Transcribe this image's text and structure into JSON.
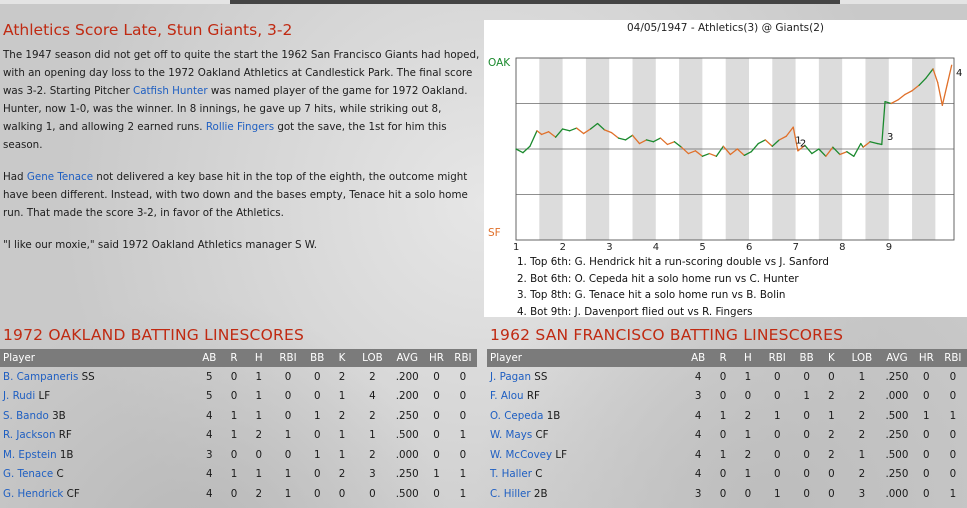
{
  "article": {
    "headline": "Athletics Score Late, Stun Giants, 3-2",
    "p1": [
      {
        "t": "The 1947 season did not get off to quite the start the 1962 San Francisco Giants had hoped, with an opening day loss to the 1972 Oakland Athletics at Candlestick Park. The final score was 3-2. Starting Pitcher "
      },
      {
        "t": "Catfish Hunter",
        "link": true
      },
      {
        "t": " was named player of the game for 1972 Oakland. Hunter, now 1-0, was the winner. In 8 innings, he gave up 7 hits, while striking out 8, walking 1, and allowing 2 earned runs. "
      },
      {
        "t": "Rollie Fingers",
        "link": true
      },
      {
        "t": " got the save, the 1st for him this season."
      }
    ],
    "p2": [
      {
        "t": "Had "
      },
      {
        "t": "Gene Tenace",
        "link": true
      },
      {
        "t": " not delivered a key base hit in the top of the eighth, the outcome might have been different. Instead, with two down and the bases empty, Tenace hit a solo home run. That made the score 3-2, in favor of the Athletics."
      }
    ],
    "p3": [
      {
        "t": "\"I like our moxie,\" said 1972 Oakland Athletics manager S W."
      }
    ]
  },
  "chart_data": {
    "type": "line",
    "title": "04/05/1947 - Athletics(3) @ Giants(2)",
    "top_label": "OAK",
    "bottom_label": "SF",
    "x_ticks": [
      "1",
      "2",
      "3",
      "4",
      "5",
      "6",
      "7",
      "8",
      "9"
    ],
    "xlim": [
      0,
      9.4
    ],
    "ylim": [
      -1,
      1
    ],
    "grid": true,
    "colors": {
      "oak": "#1b8a2e",
      "sf": "#e0702a",
      "band": "#dcdcdc"
    },
    "points": [
      [
        0.0,
        0.0,
        "g"
      ],
      [
        0.15,
        -0.04,
        "g"
      ],
      [
        0.3,
        0.03,
        "g"
      ],
      [
        0.45,
        0.2,
        "g"
      ],
      [
        0.55,
        0.16,
        "o"
      ],
      [
        0.7,
        0.19,
        "o"
      ],
      [
        0.85,
        0.13,
        "o"
      ],
      [
        1.0,
        0.22,
        "g"
      ],
      [
        1.15,
        0.2,
        "g"
      ],
      [
        1.3,
        0.23,
        "g"
      ],
      [
        1.45,
        0.17,
        "o"
      ],
      [
        1.6,
        0.22,
        "o"
      ],
      [
        1.75,
        0.28,
        "g"
      ],
      [
        1.9,
        0.21,
        "g"
      ],
      [
        2.05,
        0.18,
        "o"
      ],
      [
        2.2,
        0.12,
        "o"
      ],
      [
        2.35,
        0.1,
        "g"
      ],
      [
        2.5,
        0.15,
        "g"
      ],
      [
        2.65,
        0.06,
        "o"
      ],
      [
        2.8,
        0.1,
        "o"
      ],
      [
        2.95,
        0.08,
        "g"
      ],
      [
        3.1,
        0.12,
        "g"
      ],
      [
        3.25,
        0.05,
        "o"
      ],
      [
        3.4,
        0.08,
        "o"
      ],
      [
        3.55,
        0.02,
        "g"
      ],
      [
        3.7,
        -0.05,
        "o"
      ],
      [
        3.85,
        -0.02,
        "o"
      ],
      [
        4.0,
        -0.08,
        "o"
      ],
      [
        4.15,
        -0.05,
        "g"
      ],
      [
        4.3,
        -0.08,
        "o"
      ],
      [
        4.45,
        0.03,
        "g"
      ],
      [
        4.6,
        -0.06,
        "o"
      ],
      [
        4.75,
        0.0,
        "o"
      ],
      [
        4.9,
        -0.07,
        "o"
      ],
      [
        5.05,
        -0.03,
        "g"
      ],
      [
        5.2,
        0.06,
        "g"
      ],
      [
        5.35,
        0.1,
        "g"
      ],
      [
        5.5,
        0.03,
        "o"
      ],
      [
        5.65,
        0.1,
        "g"
      ],
      [
        5.8,
        0.14,
        "o"
      ],
      [
        5.95,
        0.24,
        "o"
      ],
      [
        6.05,
        -0.02,
        "o"
      ],
      [
        6.2,
        0.04,
        "o"
      ],
      [
        6.35,
        -0.05,
        "g"
      ],
      [
        6.5,
        0.0,
        "g"
      ],
      [
        6.65,
        -0.08,
        "g"
      ],
      [
        6.8,
        0.02,
        "o"
      ],
      [
        6.95,
        -0.06,
        "g"
      ],
      [
        7.1,
        -0.03,
        "o"
      ],
      [
        7.25,
        -0.08,
        "g"
      ],
      [
        7.4,
        0.06,
        "g"
      ],
      [
        7.45,
        0.02,
        "g"
      ],
      [
        7.6,
        0.08,
        "o"
      ],
      [
        7.75,
        0.06,
        "g"
      ],
      [
        7.85,
        0.05,
        "g"
      ],
      [
        7.92,
        0.52,
        "g"
      ],
      [
        8.05,
        0.5,
        "g"
      ],
      [
        8.2,
        0.54,
        "o"
      ],
      [
        8.35,
        0.6,
        "o"
      ],
      [
        8.5,
        0.64,
        "o"
      ],
      [
        8.65,
        0.7,
        "o"
      ],
      [
        8.8,
        0.78,
        "g"
      ],
      [
        8.95,
        0.88,
        "g"
      ],
      [
        9.05,
        0.73,
        "o"
      ],
      [
        9.15,
        0.48,
        "o"
      ],
      [
        9.25,
        0.7,
        "o"
      ],
      [
        9.35,
        0.92,
        "o"
      ]
    ],
    "annotations": [
      {
        "label": "1",
        "x": 5.95,
        "y": 0.06
      },
      {
        "label": "2",
        "x": 6.05,
        "y": 0.03
      },
      {
        "label": "3",
        "x": 7.92,
        "y": 0.1
      },
      {
        "label": "4",
        "x": 9.4,
        "y": 0.8
      }
    ],
    "notes": [
      "1. Top 6th: G. Hendrick hit a run-scoring double vs J. Sanford",
      "2. Bot 6th: O. Cepeda hit a solo home run vs C. Hunter",
      "3. Top 8th: G. Tenace hit a solo home run vs B. Bolin",
      "4. Bot 9th: J. Davenport flied out vs R. Fingers"
    ]
  },
  "columns": [
    "Player",
    "AB",
    "R",
    "H",
    "RBI",
    "BB",
    "K",
    "LOB",
    "AVG",
    "HR",
    "RBI"
  ],
  "oakland": {
    "title": "1972 OAKLAND BATTING LINESCORES",
    "rows": [
      {
        "name": "B. Campaneris",
        "pos": "SS",
        "s": [
          "5",
          "0",
          "1",
          "0",
          "0",
          "2",
          "2",
          ".200",
          "0",
          "0"
        ]
      },
      {
        "name": "J. Rudi",
        "pos": "LF",
        "s": [
          "5",
          "0",
          "1",
          "0",
          "0",
          "1",
          "4",
          ".200",
          "0",
          "0"
        ]
      },
      {
        "name": "S. Bando",
        "pos": "3B",
        "s": [
          "4",
          "1",
          "1",
          "0",
          "1",
          "2",
          "2",
          ".250",
          "0",
          "0"
        ]
      },
      {
        "name": "R. Jackson",
        "pos": "RF",
        "s": [
          "4",
          "1",
          "2",
          "1",
          "0",
          "1",
          "1",
          ".500",
          "0",
          "1"
        ]
      },
      {
        "name": "M. Epstein",
        "pos": "1B",
        "s": [
          "3",
          "0",
          "0",
          "0",
          "1",
          "1",
          "2",
          ".000",
          "0",
          "0"
        ]
      },
      {
        "name": "G. Tenace",
        "pos": "C",
        "s": [
          "4",
          "1",
          "1",
          "1",
          "0",
          "2",
          "3",
          ".250",
          "1",
          "1"
        ]
      },
      {
        "name": "G. Hendrick",
        "pos": "CF",
        "s": [
          "4",
          "0",
          "2",
          "1",
          "0",
          "0",
          "0",
          ".500",
          "0",
          "1"
        ]
      }
    ]
  },
  "sanfrancisco": {
    "title": "1962 SAN FRANCISCO BATTING LINESCORES",
    "rows": [
      {
        "name": "J. Pagan",
        "pos": "SS",
        "s": [
          "4",
          "0",
          "1",
          "0",
          "0",
          "0",
          "1",
          ".250",
          "0",
          "0"
        ]
      },
      {
        "name": "F. Alou",
        "pos": "RF",
        "s": [
          "3",
          "0",
          "0",
          "0",
          "1",
          "2",
          "2",
          ".000",
          "0",
          "0"
        ]
      },
      {
        "name": "O. Cepeda",
        "pos": "1B",
        "s": [
          "4",
          "1",
          "2",
          "1",
          "0",
          "1",
          "2",
          ".500",
          "1",
          "1"
        ]
      },
      {
        "name": "W. Mays",
        "pos": "CF",
        "s": [
          "4",
          "0",
          "1",
          "0",
          "0",
          "2",
          "2",
          ".250",
          "0",
          "0"
        ]
      },
      {
        "name": "W. McCovey",
        "pos": "LF",
        "s": [
          "4",
          "1",
          "2",
          "0",
          "0",
          "2",
          "1",
          ".500",
          "0",
          "0"
        ]
      },
      {
        "name": "T. Haller",
        "pos": "C",
        "s": [
          "4",
          "0",
          "1",
          "0",
          "0",
          "0",
          "2",
          ".250",
          "0",
          "0"
        ]
      },
      {
        "name": "C. Hiller",
        "pos": "2B",
        "s": [
          "3",
          "0",
          "0",
          "1",
          "0",
          "0",
          "3",
          ".000",
          "0",
          "1"
        ]
      }
    ]
  }
}
